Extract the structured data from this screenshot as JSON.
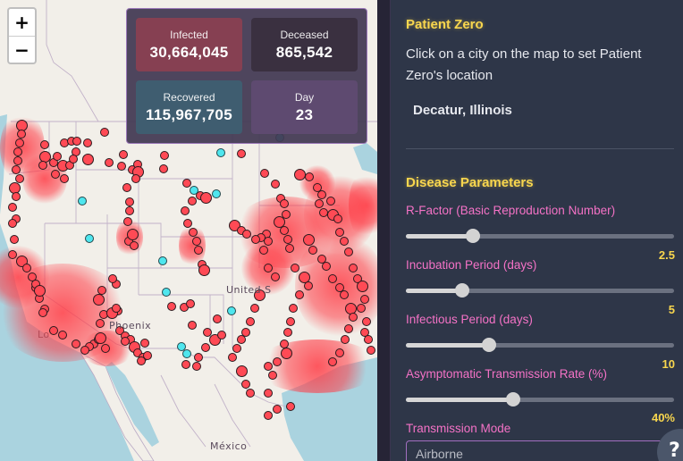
{
  "map": {
    "zoom_in_label": "+",
    "zoom_out_label": "−",
    "labels": {
      "country_us": "United S",
      "city_phoenix": "Phoenix",
      "city_la": "Lo",
      "country_mexico": "México"
    },
    "colors": {
      "infected_dot": "#ff4a55",
      "recovered_dot": "#4fe6ee",
      "water": "#aad3df",
      "land": "#f2efe9"
    }
  },
  "stats": {
    "infected": {
      "label": "Infected",
      "value": "30,664,045"
    },
    "deceased": {
      "label": "Deceased",
      "value": "865,542"
    },
    "recovered": {
      "label": "Recovered",
      "value": "115,967,705"
    },
    "day": {
      "label": "Day",
      "value": "23"
    }
  },
  "panel": {
    "patient_zero": {
      "title": "Patient Zero",
      "description": "Click on a city on the map to set Patient Zero's location",
      "selected_city": "Decatur, Illinois"
    },
    "disease": {
      "title": "Disease Parameters",
      "params": [
        {
          "label": "R-Factor (Basic Reproduction Number)",
          "value": "2.5",
          "percent": 25
        },
        {
          "label": "Incubation Period (days)",
          "value": "5",
          "percent": 21
        },
        {
          "label": "Infectious Period (days)",
          "value": "10",
          "percent": 31
        },
        {
          "label": "Asymptomatic Transmission Rate (%)",
          "value": "40%",
          "percent": 40
        }
      ],
      "transmission_mode": {
        "label": "Transmission Mode",
        "value": "Airborne"
      }
    },
    "help_label": "?"
  }
}
